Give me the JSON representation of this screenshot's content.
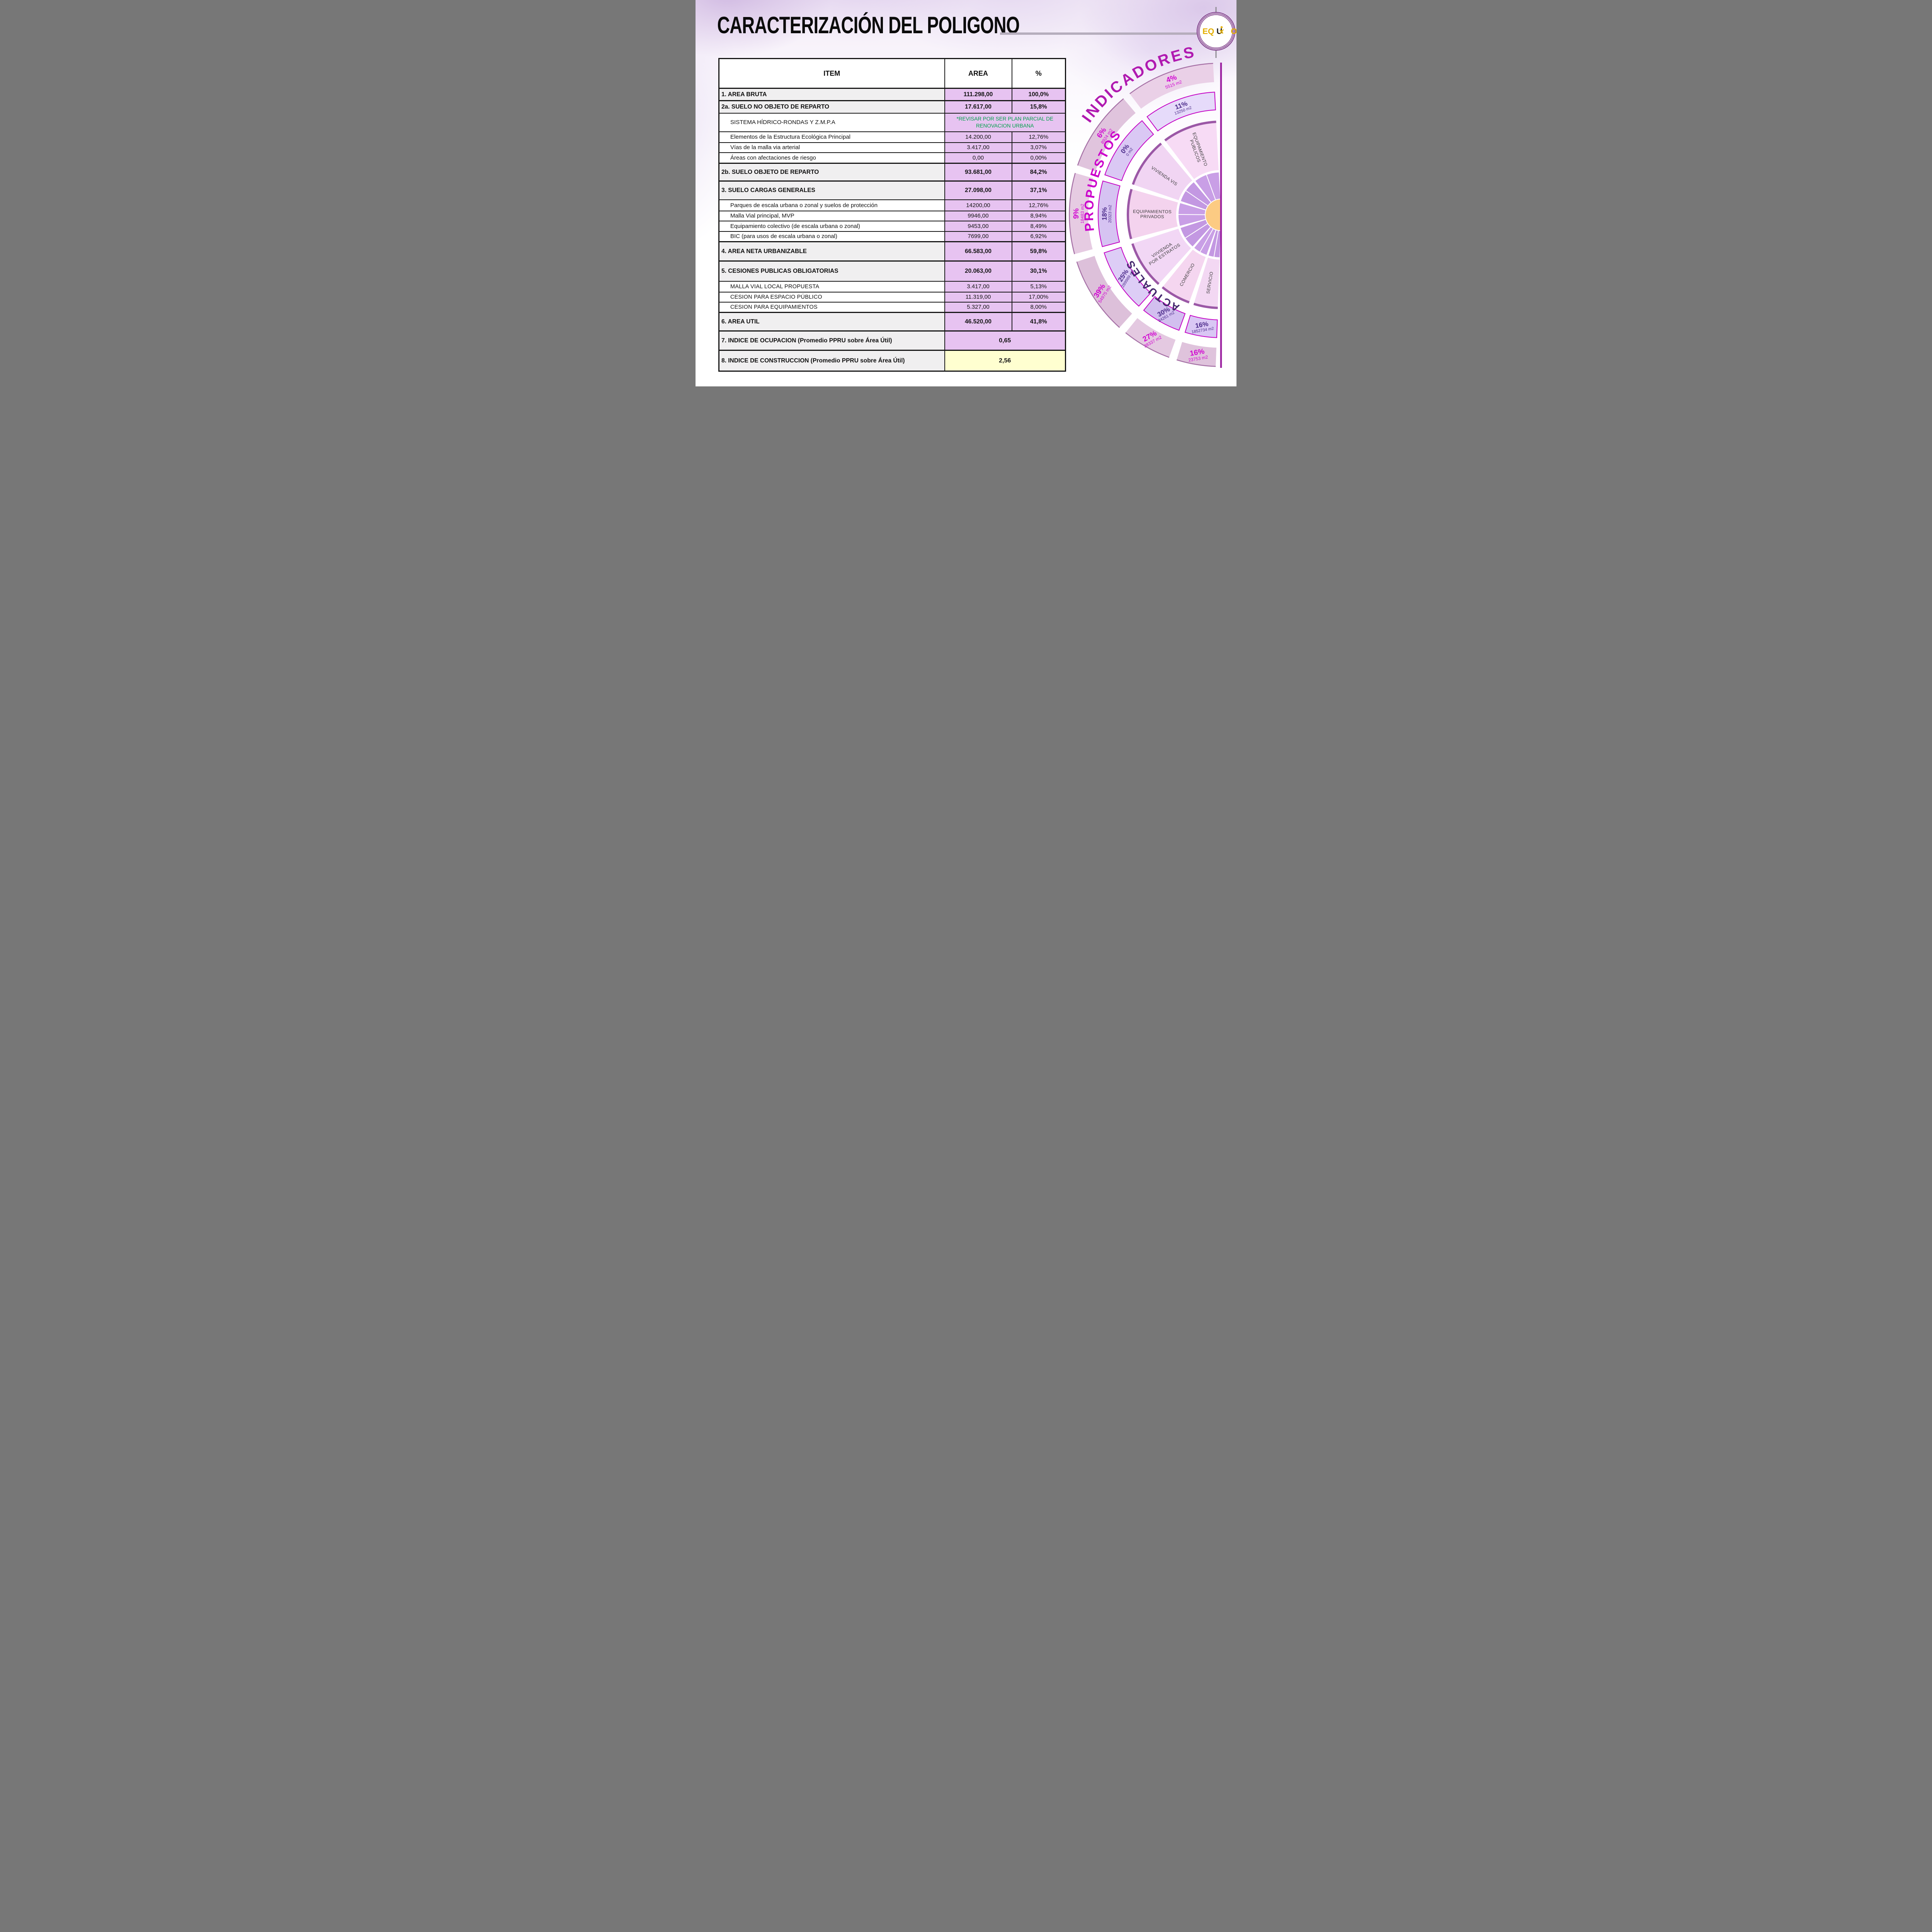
{
  "slide": {
    "title": "CARACTERIZACIÓN DEL POLIGONO"
  },
  "logo": {
    "part1": "EQ",
    "part2": "U",
    "part3": "O",
    "person_icon": "person-icon"
  },
  "colors": {
    "magenta": "#cb00cb",
    "dark_purple": "#4b2b8a",
    "green_note": "#00a14b",
    "table_value_bg": "#e7c3f1",
    "table_highlight_bg": "#ffffd0",
    "orange_center": "#fccb83",
    "ring_border": "#c400c4"
  },
  "table": {
    "headers": [
      "ITEM",
      "AREA",
      "%"
    ],
    "rows": [
      {
        "t": "main",
        "label": "1. AREA BRUTA",
        "area": "111.298,00",
        "pct": "100,0%"
      },
      {
        "t": "main",
        "label": "2a. SUELO NO OBJETO DE REPARTO",
        "area": "17.617,00",
        "pct": "15,8%"
      },
      {
        "t": "green",
        "label": "SISTEMA HÍDRICO-RONDAS Y Z.M.P.A",
        "value": "*REVISAR POR SER  PLAN PARCIAL DE RENOVACION URBANA"
      },
      {
        "t": "sub",
        "label": "Elementos de la Estructura Ecológica Principal",
        "area": "14.200,00",
        "pct": "12,76%"
      },
      {
        "t": "sub",
        "label": "Vías de la malla via arterial",
        "area": "3.417,00",
        "pct": "3,07%"
      },
      {
        "t": "sub",
        "label": "Áreas con afectaciones de riesgo",
        "area": "0,00",
        "pct": "0,00%"
      },
      {
        "t": "main",
        "label": "2b.  SUELO OBJETO DE REPARTO",
        "area": "93.681,00",
        "pct": "84,2%"
      },
      {
        "t": "main",
        "label": "3.  SUELO CARGAS GENERALES",
        "area": "27.098,00",
        "pct": "37,1%"
      },
      {
        "t": "sub",
        "label": "Parques de escala urbana o zonal y suelos de protección",
        "area": "14200,00",
        "pct": "12,76%"
      },
      {
        "t": "sub",
        "label": "Malla Vial principal, MVP",
        "area": "9946,00",
        "pct": "8,94%"
      },
      {
        "t": "sub",
        "label": "Equipamiento colectivo (de escala urbana o zonal)",
        "area": "9453,00",
        "pct": "8,49%"
      },
      {
        "t": "sub",
        "label": "BIC (para usos de escala urbana o zonal)",
        "area": "7699,00",
        "pct": "6,92%"
      },
      {
        "t": "main",
        "label": "4. AREA NETA URBANIZABLE",
        "area": "66.583,00",
        "pct": "59,8%"
      },
      {
        "t": "main",
        "label": "5. CESIONES PUBLICAS OBLIGATORIAS",
        "area": "20.063,00",
        "pct": "30,1%"
      },
      {
        "t": "subcaps",
        "label": "MALLA VIAL LOCAL  PROPUESTA",
        "area": "3.417,00",
        "pct": "5,13%"
      },
      {
        "t": "subcaps",
        "label": "CESION PARA ESPACIO PÚBLICO",
        "area": "11.319,00",
        "pct": "17,00%"
      },
      {
        "t": "subcaps",
        "label": "CESION PARA EQUIPAMIENTOS",
        "area": "5.327,00",
        "pct": "8,00%"
      },
      {
        "t": "main",
        "label": "6. AREA UTIL",
        "area": "46.520,00",
        "pct": "41,8%"
      },
      {
        "t": "purple-merge",
        "label": "7. INDICE DE OCUPACION  (Promedio PPRU sobre Área Útil)",
        "value": "0,65"
      },
      {
        "t": "yellow-merge",
        "label": "8. INDICE DE CONSTRUCCION (Promedio PPRU sobre Área Útil)",
        "value": "2,56"
      }
    ]
  },
  "diagram": {
    "title": "INDICADORES",
    "outer_arc_label": "PROPUESTOS",
    "inner_arc_label": "ACTUALES",
    "sectors": [
      {
        "inner": "EQUIPAMIENTO\nPUBLICOS",
        "outer_pct": "4%",
        "outer_m2": "5515 m2",
        "ring2_pct": "11%",
        "ring2_m2": "13250 m2"
      },
      {
        "inner": "VIVIENDA VIS",
        "outer_pct": "6%",
        "outer_m2": "8924 m2",
        "ring2_pct": "0%",
        "ring2_m2": "0 m2"
      },
      {
        "inner": "EQUIPAMIENTOS\nPRIVADOS",
        "outer_pct": "9%",
        "outer_m2": "18483 m2",
        "ring2_pct": "18%",
        "ring2_m2": "20323 m2"
      },
      {
        "inner": "VIIVIENDA\nPOR ESTRATOS",
        "outer_pct": "39%",
        "outer_m2": "54975 m2",
        "ring2_pct": "25%",
        "ring2_m2": "289989 m2"
      },
      {
        "inner": "COMERCIO",
        "outer_pct": "27%",
        "outer_m2": "38337 m2",
        "ring2_pct": "30%",
        "ring2_m2": "34261 m2"
      },
      {
        "inner": "SERVICIO",
        "outer_pct": "16%",
        "outer_m2": "23753 m2",
        "ring2_pct": "16%",
        "ring2_m2": "1852734 m2"
      }
    ]
  },
  "chart_data": {
    "type": "pie",
    "title": "INDICADORES",
    "categories": [
      "EQUIPAMIENTO PUBLICOS",
      "VIVIENDA VIS",
      "EQUIPAMIENTOS PRIVADOS",
      "VIIVIENDA POR ESTRATOS",
      "COMERCIO",
      "SERVICIO"
    ],
    "series": [
      {
        "name": "PROPUESTOS (outer ring) %",
        "values": [
          4,
          6,
          9,
          39,
          27,
          16
        ]
      },
      {
        "name": "PROPUESTOS (outer ring) m2",
        "values": [
          5515,
          8924,
          18483,
          54975,
          38337,
          23753
        ]
      },
      {
        "name": "ACTUALES (second ring) %",
        "values": [
          11,
          0,
          18,
          25,
          30,
          16
        ]
      },
      {
        "name": "ACTUALES (second ring) m2",
        "values": [
          13250,
          0,
          20323,
          289989,
          34261,
          1852734
        ]
      }
    ],
    "legend_position": "arc-labels"
  }
}
